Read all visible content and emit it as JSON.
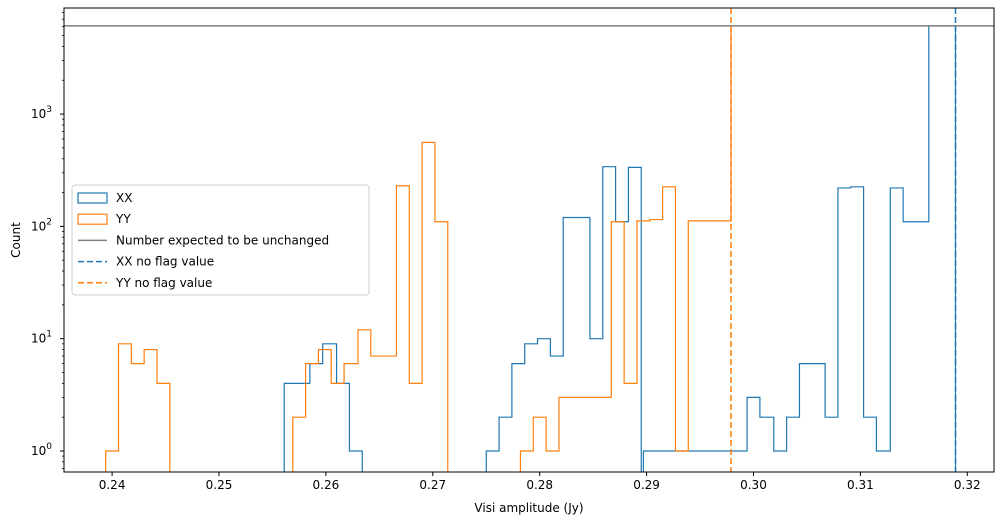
{
  "chart_data": {
    "type": "histogram-step",
    "xlabel": "Visi amplitude (Jy)",
    "ylabel": "Count",
    "yscale": "log",
    "xlim": [
      0.2355,
      0.3225
    ],
    "ylim": [
      0.65,
      8800
    ],
    "x_ticks": [
      {
        "value": 0.24,
        "label": "0.24"
      },
      {
        "value": 0.25,
        "label": "0.25"
      },
      {
        "value": 0.26,
        "label": "0.26"
      },
      {
        "value": 0.27,
        "label": "0.27"
      },
      {
        "value": 0.28,
        "label": "0.28"
      },
      {
        "value": 0.29,
        "label": "0.29"
      },
      {
        "value": 0.3,
        "label": "0.30"
      },
      {
        "value": 0.31,
        "label": "0.31"
      },
      {
        "value": 0.32,
        "label": "0.32"
      }
    ],
    "y_ticks": [
      {
        "value": 1,
        "base": "10",
        "exp": "0"
      },
      {
        "value": 10,
        "base": "10",
        "exp": "1"
      },
      {
        "value": 100,
        "base": "10",
        "exp": "2"
      },
      {
        "value": 1000,
        "base": "10",
        "exp": "3"
      }
    ],
    "series": [
      {
        "name": "XX",
        "color": "#1f77b4",
        "style": "step",
        "edges": [
          0.2561,
          0.2573,
          0.2585,
          0.2597,
          0.261,
          0.2622,
          0.2634,
          0.275,
          0.2762,
          0.2774,
          0.2786,
          0.2798,
          0.281,
          0.2822,
          0.2847,
          0.2859,
          0.2871,
          0.2883,
          0.2895,
          0.2897,
          0.2994,
          0.3006,
          0.3019,
          0.3031,
          0.3043,
          0.3055,
          0.3067,
          0.3079,
          0.3091,
          0.3103,
          0.3115,
          0.3128,
          0.314,
          0.3152,
          0.3164,
          0.3176,
          0.3189
        ],
        "counts": [
          4,
          4,
          6,
          9,
          4,
          1,
          0,
          1,
          2,
          6,
          9,
          10,
          7,
          120,
          10,
          340,
          110,
          335,
          0,
          1,
          3,
          2,
          1,
          2,
          6,
          6,
          2,
          220,
          225,
          2,
          1,
          220,
          110,
          110,
          6100,
          6100
        ]
      },
      {
        "name": "YY",
        "color": "#ff7f0e",
        "style": "step",
        "edges": [
          0.2394,
          0.2406,
          0.2418,
          0.243,
          0.2442,
          0.2454,
          0.2569,
          0.2581,
          0.2593,
          0.2605,
          0.2617,
          0.263,
          0.2642,
          0.2666,
          0.2678,
          0.269,
          0.2702,
          0.2714,
          0.2782,
          0.2794,
          0.2806,
          0.2818,
          0.283,
          0.2867,
          0.2879,
          0.2891,
          0.2903,
          0.2915,
          0.2927,
          0.2939,
          0.2975,
          0.2979
        ],
        "counts": [
          1,
          9,
          6,
          8,
          4,
          0,
          2,
          6,
          8,
          4,
          6,
          12,
          7,
          230,
          4,
          560,
          110,
          0,
          1,
          2,
          1,
          3,
          3,
          110,
          4,
          112,
          115,
          225,
          1,
          112,
          112,
          6100
        ]
      }
    ],
    "reference_lines": [
      {
        "name": "Number expected to be unchanged",
        "orientation": "horizontal",
        "value": 6100,
        "color": "#7f7f7f",
        "style": "solid"
      },
      {
        "name": "XX no flag value",
        "orientation": "vertical",
        "value": 0.3189,
        "color": "#1f77b4",
        "style": "dashed"
      },
      {
        "name": "YY no flag value",
        "orientation": "vertical",
        "value": 0.2979,
        "color": "#ff7f0e",
        "style": "dashed"
      }
    ],
    "legend": {
      "position": "center-left",
      "entries": [
        {
          "label": "XX",
          "color": "#1f77b4",
          "marker": "box"
        },
        {
          "label": "YY",
          "color": "#ff7f0e",
          "marker": "box"
        },
        {
          "label": "Number expected to be unchanged",
          "color": "#7f7f7f",
          "marker": "solid"
        },
        {
          "label": "XX no flag value",
          "color": "#1f77b4",
          "marker": "dashed"
        },
        {
          "label": "YY no flag value",
          "color": "#ff7f0e",
          "marker": "dashed"
        }
      ]
    },
    "grid": false
  }
}
